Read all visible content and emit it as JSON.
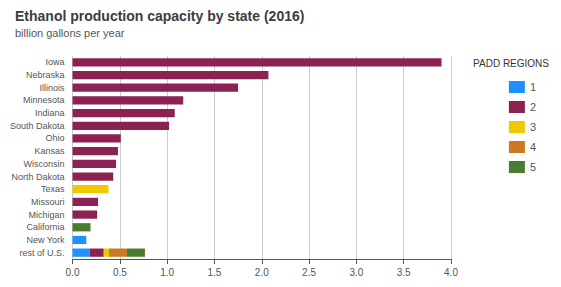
{
  "chart_data": {
    "type": "bar",
    "orientation": "horizontal",
    "stacked": true,
    "title": "Ethanol production capacity by state (2016)",
    "subtitle": "billion gallons per year",
    "categories": [
      "Iowa",
      "Nebraska",
      "Illinois",
      "Minnesota",
      "Indiana",
      "South Dakota",
      "Ohio",
      "Kansas",
      "Wisconsin",
      "North Dakota",
      "Texas",
      "Missouri",
      "Michigan",
      "California",
      "New York",
      "rest of U.S."
    ],
    "series": [
      {
        "name": "1",
        "color": "#1E90FF",
        "values": [
          null,
          null,
          null,
          null,
          null,
          null,
          null,
          null,
          null,
          null,
          null,
          null,
          null,
          null,
          0.145,
          0.18
        ]
      },
      {
        "name": "2",
        "color": "#8B2252",
        "values": [
          3.9,
          2.07,
          1.75,
          1.17,
          1.08,
          1.02,
          0.51,
          0.48,
          0.46,
          0.43,
          null,
          0.27,
          0.26,
          null,
          null,
          0.15
        ]
      },
      {
        "name": "3",
        "color": "#F0C800",
        "values": [
          null,
          null,
          null,
          null,
          null,
          null,
          null,
          null,
          null,
          null,
          0.38,
          null,
          null,
          null,
          null,
          0.055
        ]
      },
      {
        "name": "4",
        "color": "#CC7722",
        "values": [
          null,
          null,
          null,
          null,
          null,
          null,
          null,
          null,
          null,
          null,
          null,
          null,
          null,
          null,
          null,
          0.19
        ]
      },
      {
        "name": "5",
        "color": "#4A7C2F",
        "values": [
          null,
          null,
          null,
          null,
          null,
          null,
          null,
          null,
          null,
          null,
          null,
          null,
          null,
          0.19,
          null,
          0.19
        ]
      }
    ],
    "xlim": [
      0,
      4.0
    ],
    "xticks": [
      {
        "value": 0,
        "label": "0.0"
      },
      0.5,
      {
        "value": 1,
        "label": "1.0"
      },
      1.5,
      {
        "value": 2,
        "label": "2.0"
      },
      2.5,
      {
        "value": 3,
        "label": "3.0"
      },
      3.5,
      {
        "value": 4,
        "label": "4.0"
      }
    ],
    "grid": true,
    "legend": "right",
    "annotations": [
      "PADD REGIONS"
    ]
  }
}
